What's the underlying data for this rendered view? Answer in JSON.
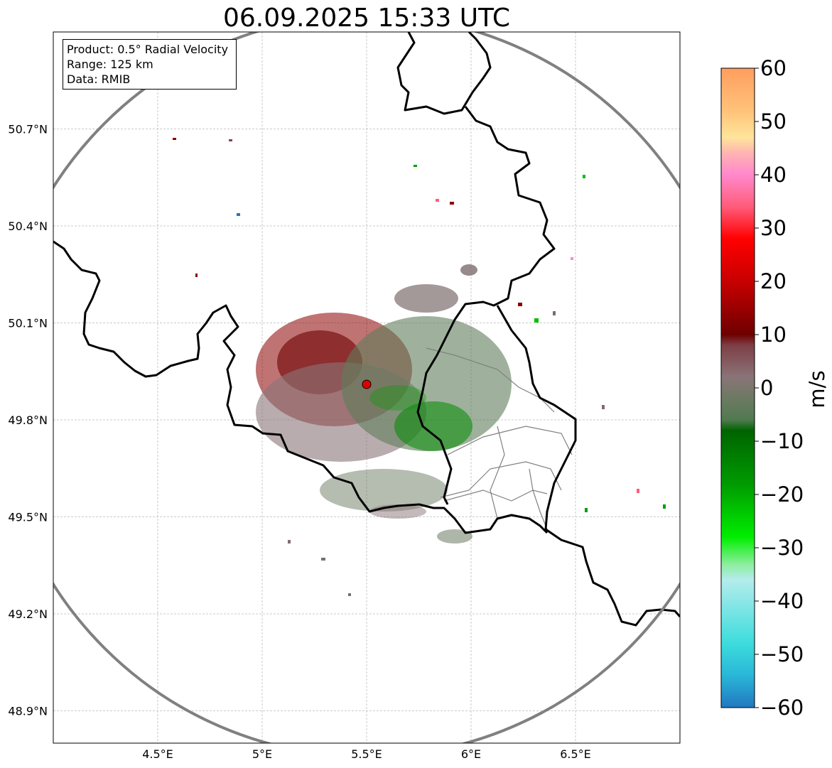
{
  "title": "06.09.2025 15:33 UTC",
  "info": {
    "product": "Product: 0.5° Radial Velocity",
    "range": "Range: 125 km",
    "data": "Data: RMIB"
  },
  "map": {
    "lon_range": [
      4.0,
      7.0
    ],
    "lat_range": [
      48.8,
      51.0
    ],
    "lon_ticks": [
      "4.5°E",
      "5°E",
      "5.5°E",
      "6°E",
      "6.5°E"
    ],
    "lat_ticks": [
      "50.7°N",
      "50.4°N",
      "50.1°N",
      "49.8°N",
      "49.5°N",
      "49.2°N",
      "48.9°N"
    ],
    "grid": true,
    "radar_site": {
      "lon": 5.5,
      "lat": 49.91,
      "color": "#e00000"
    },
    "range_circle_km": 125,
    "range_circle_color": "#808080"
  },
  "colorbar": {
    "label": "m/s",
    "range": [
      -60,
      60
    ],
    "ticks": [
      "60",
      "50",
      "40",
      "30",
      "20",
      "10",
      "0",
      "−10",
      "−20",
      "−30",
      "−40",
      "−50",
      "−60"
    ],
    "stops": [
      {
        "v": 60,
        "c": "#ff9e5e"
      },
      {
        "v": 52,
        "c": "#ffc27a"
      },
      {
        "v": 47,
        "c": "#ffe59a"
      },
      {
        "v": 44,
        "c": "#ffb3b3"
      },
      {
        "v": 40,
        "c": "#ff88cc"
      },
      {
        "v": 34,
        "c": "#ff5c7a"
      },
      {
        "v": 28,
        "c": "#ff0000"
      },
      {
        "v": 20,
        "c": "#c80000"
      },
      {
        "v": 10,
        "c": "#6e0000"
      },
      {
        "v": 8,
        "c": "#7d3f46"
      },
      {
        "v": 2,
        "c": "#8a7478"
      },
      {
        "v": -2,
        "c": "#6c7a62"
      },
      {
        "v": -6,
        "c": "#507a50"
      },
      {
        "v": -8,
        "c": "#006400"
      },
      {
        "v": -18,
        "c": "#009a00"
      },
      {
        "v": -28,
        "c": "#00ee00"
      },
      {
        "v": -33,
        "c": "#8aee9a"
      },
      {
        "v": -36,
        "c": "#b4ecec"
      },
      {
        "v": -48,
        "c": "#3cdcdc"
      },
      {
        "v": -54,
        "c": "#29b6d8"
      },
      {
        "v": -60,
        "c": "#2278c0"
      }
    ]
  },
  "colors": {
    "border": "#000000",
    "admin_border": "#808080",
    "approach_velocity": "#2e8b2e",
    "receding_velocity": "#8b0000",
    "near_zero_velocity": "#8a7478"
  }
}
